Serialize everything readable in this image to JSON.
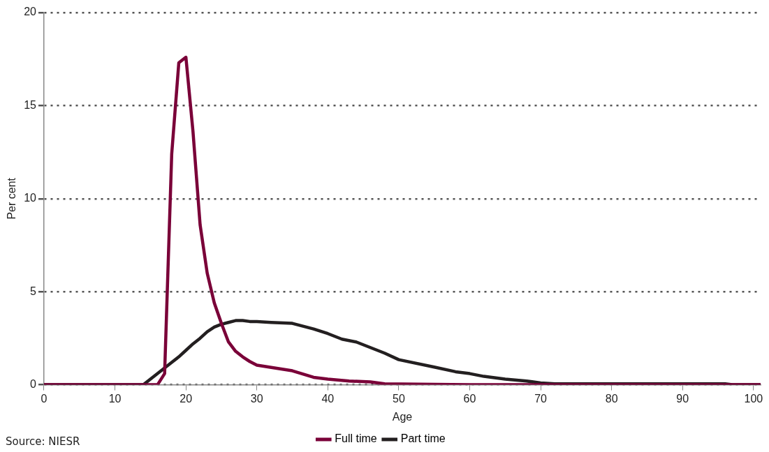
{
  "chart_data": {
    "type": "line",
    "xlabel": "Age",
    "ylabel": "Per cent",
    "xlim": [
      0,
      101
    ],
    "xticks": [
      0,
      10,
      20,
      30,
      40,
      50,
      60,
      70,
      80,
      90,
      100
    ],
    "ylim": [
      0,
      20
    ],
    "yticks": [
      0,
      5,
      10,
      15,
      20
    ],
    "grid": "y",
    "legend": "bottom",
    "marker": "none",
    "line_style": "solid",
    "annotations": [
      "Source: NIESR"
    ],
    "series": [
      {
        "name": "Full time",
        "color": "#7a0038",
        "x": [
          0,
          16,
          17,
          18,
          19,
          20,
          21,
          22,
          23,
          24,
          25,
          26,
          27,
          28,
          29,
          30,
          35,
          38,
          40,
          43,
          46,
          48,
          55,
          60,
          101
        ],
        "values": [
          0,
          0,
          0.6,
          12.4,
          17.3,
          17.6,
          13.6,
          8.6,
          6.0,
          4.4,
          3.3,
          2.3,
          1.8,
          1.5,
          1.25,
          1.05,
          0.75,
          0.4,
          0.3,
          0.2,
          0.15,
          0.05,
          0.02,
          0,
          0
        ]
      },
      {
        "name": "Part time",
        "color": "#231f20",
        "x": [
          0,
          14,
          15,
          16,
          17,
          18,
          19,
          20,
          21,
          22,
          23,
          24,
          25,
          26,
          27,
          28,
          29,
          30,
          32,
          35,
          38,
          40,
          42,
          44,
          46,
          48,
          50,
          55,
          58,
          60,
          62,
          65,
          68,
          70,
          72,
          96,
          97,
          101
        ],
        "values": [
          0,
          0,
          0.3,
          0.6,
          0.9,
          1.2,
          1.5,
          1.85,
          2.2,
          2.5,
          2.85,
          3.1,
          3.25,
          3.35,
          3.45,
          3.45,
          3.4,
          3.4,
          3.35,
          3.3,
          3.0,
          2.75,
          2.45,
          2.3,
          2.0,
          1.7,
          1.35,
          0.95,
          0.7,
          0.6,
          0.45,
          0.3,
          0.2,
          0.1,
          0.05,
          0.05,
          0,
          0
        ]
      }
    ]
  }
}
